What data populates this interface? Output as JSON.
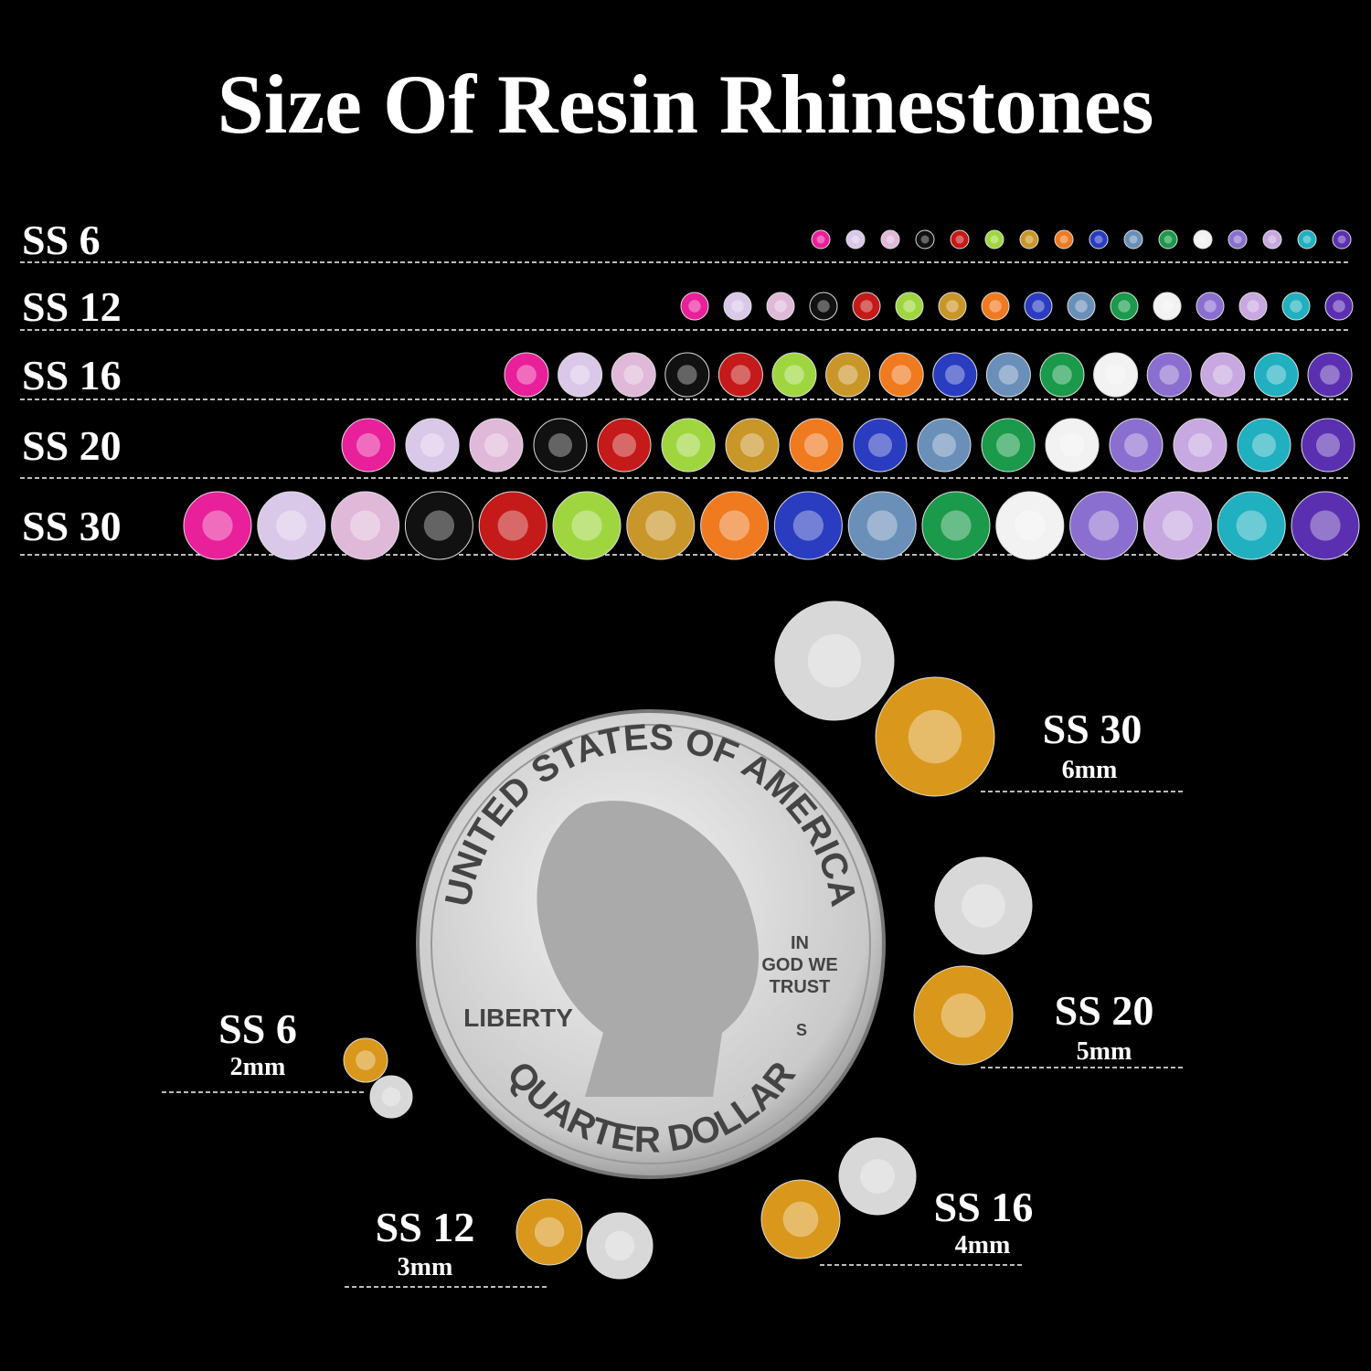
{
  "header": {
    "title": "Size Of Resin Rhinestones"
  },
  "rows": [
    {
      "label": "SS 6"
    },
    {
      "label": "SS 12"
    },
    {
      "label": "SS 16"
    },
    {
      "label": "SS 20"
    },
    {
      "label": "SS 30"
    }
  ],
  "sizes": [
    {
      "label": "SS 30",
      "mm": "6mm"
    },
    {
      "label": "SS 20",
      "mm": "5mm"
    },
    {
      "label": "SS 16",
      "mm": "4mm"
    },
    {
      "label": "SS 12",
      "mm": "3mm"
    },
    {
      "label": "SS 6",
      "mm": "2mm"
    }
  ],
  "coin": {
    "top": "UNITED STATES OF AMERICA",
    "motto": [
      "IN",
      "GOD WE",
      "TRUST"
    ],
    "liberty": "LIBERTY",
    "mint": "S",
    "bottom": "QUARTER DOLLAR"
  }
}
